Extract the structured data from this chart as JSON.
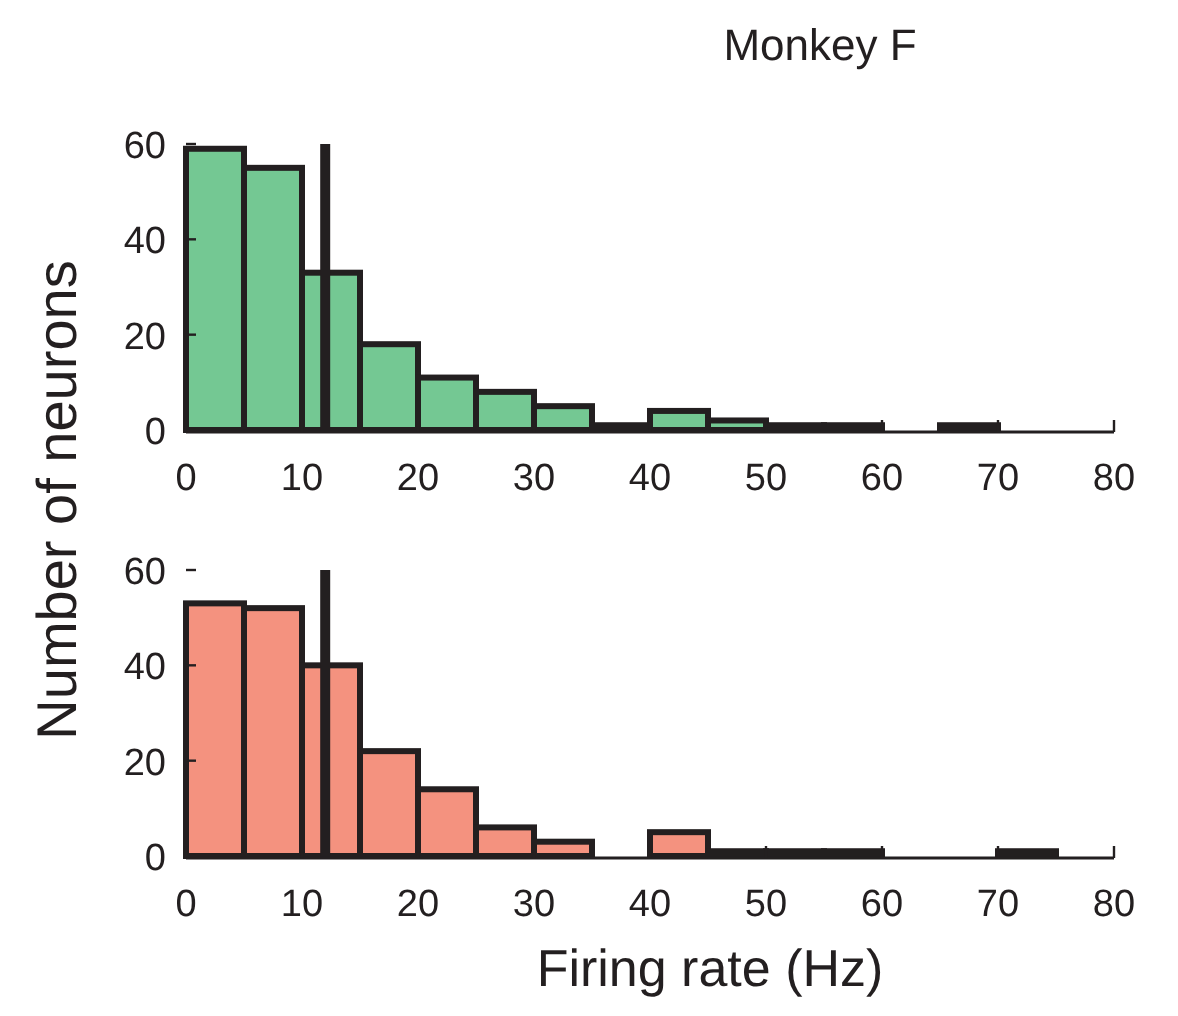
{
  "chart_data": [
    {
      "type": "histogram",
      "title": "Monkey F",
      "ylabel": "Number of neurons",
      "bins": [
        0,
        5,
        10,
        15,
        20,
        25,
        30,
        35,
        40,
        45,
        50,
        55,
        60,
        65,
        70,
        75
      ],
      "values": [
        59,
        55,
        33,
        18,
        11,
        8,
        5,
        1,
        4,
        2,
        1,
        1,
        0,
        1,
        0
      ],
      "color": "#74c893",
      "xlim": [
        0,
        80
      ],
      "xticks": [
        0,
        10,
        20,
        30,
        40,
        50,
        60,
        70,
        80
      ],
      "ylim": [
        0,
        60
      ],
      "yticks": [
        0,
        20,
        40,
        60
      ],
      "ref_lines": [
        {
          "axis": "x",
          "value": 12,
          "color": "#231f20"
        }
      ],
      "grid": false
    },
    {
      "type": "histogram",
      "xlabel": "Firing rate (Hz)",
      "bins": [
        0,
        5,
        10,
        15,
        20,
        25,
        30,
        35,
        40,
        45,
        50,
        55,
        60,
        65,
        70,
        75
      ],
      "values": [
        53,
        52,
        40,
        22,
        14,
        6,
        3,
        0,
        5,
        1,
        1,
        1,
        0,
        0,
        1
      ],
      "color": "#f4927f",
      "xlim": [
        0,
        80
      ],
      "xticks": [
        0,
        10,
        20,
        30,
        40,
        50,
        60,
        70,
        80
      ],
      "ylim": [
        0,
        60
      ],
      "yticks": [
        0,
        20,
        40,
        60
      ],
      "ref_lines": [
        {
          "axis": "x",
          "value": 12,
          "color": "#231f20"
        }
      ],
      "grid": false
    }
  ]
}
